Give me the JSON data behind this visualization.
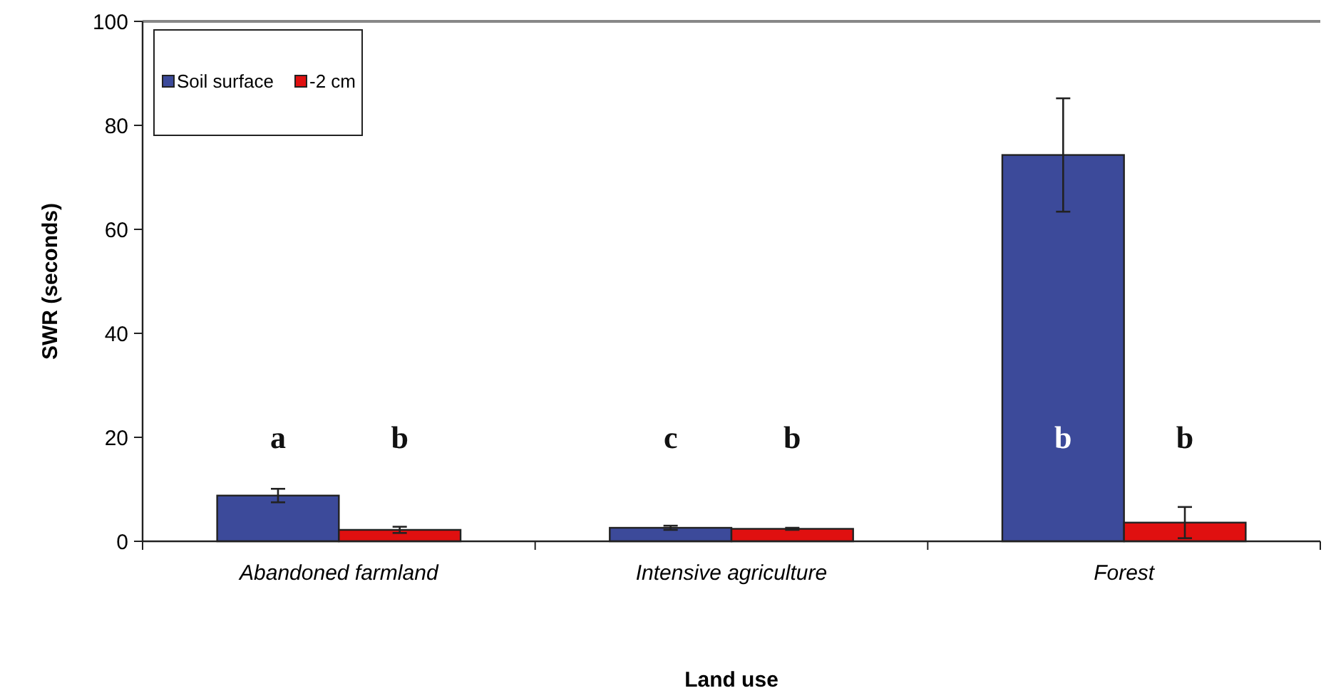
{
  "chart_data": {
    "type": "bar",
    "xlabel": "Land use",
    "ylabel": "SWR (seconds)",
    "categories": [
      "Abandoned farmland",
      "Intensive agriculture",
      "Forest"
    ],
    "series": [
      {
        "name": "Soil surface",
        "color": "#3c4a9a",
        "values": [
          8.8,
          2.6,
          74.3
        ],
        "errors": [
          1.3,
          0.4,
          10.9
        ]
      },
      {
        "name": "-2 cm",
        "color": "#e01010",
        "values": [
          2.2,
          2.4,
          3.6
        ],
        "errors": [
          0.6,
          0.2,
          3
        ]
      }
    ],
    "ylim": [
      0,
      100
    ],
    "yticks": [
      0,
      20,
      40,
      60,
      80,
      100
    ],
    "grid": false,
    "legend": "top left",
    "annotations": [
      "a",
      "b",
      "c",
      "b",
      "b",
      "b"
    ]
  }
}
